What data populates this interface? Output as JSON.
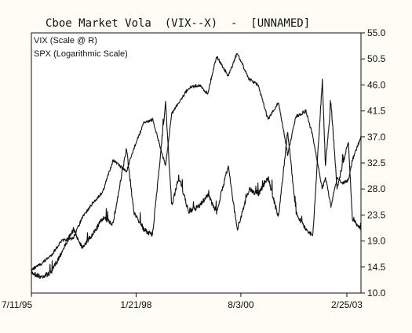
{
  "chart_data": {
    "type": "line",
    "title": "Cboe Market Vola  (VIX--X)  -  [UNNAMED]",
    "xlabel": "",
    "ylabel": "",
    "y_axis_side": "right",
    "ylim": [
      10.0,
      55.0
    ],
    "yticks": [
      10.0,
      14.5,
      19.0,
      23.5,
      28.0,
      32.5,
      37.0,
      41.5,
      46.0,
      50.5,
      55.0
    ],
    "ytick_labels": [
      "10.0",
      "14.5",
      "19.0",
      "23.5",
      "28.0",
      "32.5",
      "37.0",
      "41.5",
      "46.0",
      "50.5",
      "55.0"
    ],
    "x_range": [
      "1995-07-11",
      "2003-06-30"
    ],
    "xticks": [
      "1995-07-11",
      "1998-01-21",
      "2000-08-03",
      "2003-02-25"
    ],
    "xtick_labels": [
      "7/11/95",
      "1/21/98",
      "8/3/00",
      "2/25/03"
    ],
    "grid": false,
    "legend_position": "top-left",
    "legend": [
      "VIX (Scale @ R)",
      "SPX (Logarithmic Scale)"
    ],
    "series": [
      {
        "name": "VIX (Scale @ R)",
        "color": "#111111",
        "points": [
          [
            "1995-07-11",
            13.6
          ],
          [
            "1995-10-01",
            12.8
          ],
          [
            "1996-01-01",
            13.5
          ],
          [
            "1996-04-01",
            17.0
          ],
          [
            "1996-07-15",
            21.0
          ],
          [
            "1996-10-01",
            18.0
          ],
          [
            "1997-01-01",
            20.0
          ],
          [
            "1997-04-01",
            23.0
          ],
          [
            "1997-07-01",
            22.0
          ],
          [
            "1997-10-28",
            35.0
          ],
          [
            "1998-01-01",
            24.0
          ],
          [
            "1998-04-01",
            21.0
          ],
          [
            "1998-06-15",
            20.0
          ],
          [
            "1998-10-08",
            43.0
          ],
          [
            "1998-12-01",
            25.0
          ],
          [
            "1999-02-01",
            30.0
          ],
          [
            "1999-05-01",
            24.0
          ],
          [
            "1999-08-01",
            25.0
          ],
          [
            "1999-10-15",
            27.0
          ],
          [
            "2000-01-01",
            24.0
          ],
          [
            "2000-04-14",
            32.0
          ],
          [
            "2000-07-01",
            21.0
          ],
          [
            "2000-10-15",
            28.0
          ],
          [
            "2001-01-01",
            27.0
          ],
          [
            "2001-04-01",
            30.0
          ],
          [
            "2001-07-01",
            23.0
          ],
          [
            "2001-09-21",
            38.0
          ],
          [
            "2001-12-01",
            24.0
          ],
          [
            "2002-03-01",
            21.0
          ],
          [
            "2002-05-01",
            20.0
          ],
          [
            "2002-07-24",
            47.0
          ],
          [
            "2002-08-20",
            32.0
          ],
          [
            "2002-10-08",
            43.0
          ],
          [
            "2002-12-01",
            28.0
          ],
          [
            "2003-01-15",
            32.0
          ],
          [
            "2003-03-11",
            36.0
          ],
          [
            "2003-04-15",
            23.0
          ],
          [
            "2003-06-30",
            21.0
          ]
        ]
      },
      {
        "name": "SPX (Logarithmic Scale)",
        "color": "#111111",
        "points": [
          [
            "1995-07-11",
            14.0
          ],
          [
            "1995-10-01",
            15.0
          ],
          [
            "1996-01-01",
            16.5
          ],
          [
            "1996-04-01",
            19.0
          ],
          [
            "1996-07-15",
            19.5
          ],
          [
            "1996-10-01",
            23.0
          ],
          [
            "1997-01-01",
            25.5
          ],
          [
            "1997-04-01",
            27.5
          ],
          [
            "1997-07-01",
            33.0
          ],
          [
            "1997-10-28",
            31.0
          ],
          [
            "1998-01-01",
            35.0
          ],
          [
            "1998-04-01",
            39.5
          ],
          [
            "1998-06-15",
            40.0
          ],
          [
            "1998-10-08",
            32.0
          ],
          [
            "1998-12-01",
            41.0
          ],
          [
            "1999-02-01",
            43.0
          ],
          [
            "1999-05-01",
            45.5
          ],
          [
            "1999-08-01",
            46.0
          ],
          [
            "1999-10-15",
            44.5
          ],
          [
            "2000-01-01",
            51.0
          ],
          [
            "2000-04-14",
            47.5
          ],
          [
            "2000-07-01",
            51.5
          ],
          [
            "2000-10-15",
            47.0
          ],
          [
            "2001-01-01",
            46.0
          ],
          [
            "2001-04-01",
            40.0
          ],
          [
            "2001-07-01",
            43.0
          ],
          [
            "2001-09-21",
            34.0
          ],
          [
            "2001-12-01",
            40.5
          ],
          [
            "2002-03-01",
            41.5
          ],
          [
            "2002-05-01",
            37.0
          ],
          [
            "2002-07-24",
            28.0
          ],
          [
            "2002-08-20",
            30.0
          ],
          [
            "2002-10-08",
            25.0
          ],
          [
            "2002-12-01",
            30.0
          ],
          [
            "2003-01-15",
            29.0
          ],
          [
            "2003-03-11",
            29.5
          ],
          [
            "2003-04-15",
            33.0
          ],
          [
            "2003-06-30",
            37.0
          ]
        ]
      }
    ]
  }
}
